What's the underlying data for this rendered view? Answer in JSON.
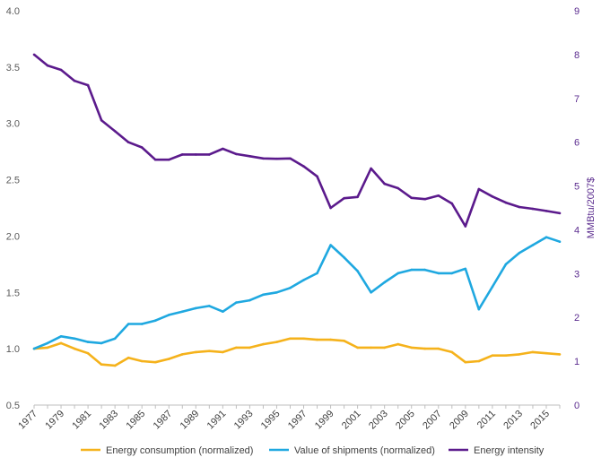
{
  "chart_data": {
    "type": "line",
    "title": "",
    "xlabel": "",
    "ylabel_left": "",
    "ylabel_right": "MMBtu/2007$",
    "ylim_left": [
      0.5,
      4.0
    ],
    "ylim_right": [
      0,
      9
    ],
    "yticks_left": [
      "0.5",
      "1.0",
      "1.5",
      "2.0",
      "2.5",
      "3.0",
      "3.5",
      "4.0"
    ],
    "yticks_right": [
      "0",
      "1",
      "2",
      "3",
      "4",
      "5",
      "6",
      "7",
      "8",
      "9"
    ],
    "x_tick_labels": [
      "1977",
      "1979",
      "1981",
      "1983",
      "1985",
      "1987",
      "1989",
      "1991",
      "1993",
      "1995",
      "1997",
      "1999",
      "2001",
      "2003",
      "2005",
      "2007",
      "2009",
      "2011",
      "2013",
      "2015"
    ],
    "x": [
      1977,
      1978,
      1979,
      1980,
      1981,
      1982,
      1983,
      1984,
      1985,
      1986,
      1987,
      1988,
      1989,
      1990,
      1991,
      1992,
      1993,
      1994,
      1995,
      1996,
      1997,
      1998,
      1999,
      2000,
      2001,
      2002,
      2003,
      2004,
      2005,
      2006,
      2007,
      2008,
      2009,
      2010,
      2011,
      2012,
      2013,
      2014,
      2015,
      2016
    ],
    "grid": false,
    "legend_position": "bottom",
    "series": [
      {
        "name": "Energy consumption (normalized)",
        "axis": "left",
        "color": "#f5b21b",
        "values": [
          1.0,
          1.01,
          1.05,
          1.0,
          0.96,
          0.86,
          0.85,
          0.92,
          0.89,
          0.88,
          0.91,
          0.95,
          0.97,
          0.98,
          0.97,
          1.01,
          1.01,
          1.04,
          1.06,
          1.09,
          1.09,
          1.08,
          1.08,
          1.07,
          1.01,
          1.01,
          1.01,
          1.04,
          1.01,
          1.0,
          1.0,
          0.97,
          0.88,
          0.89,
          0.94,
          0.94,
          0.95,
          0.97,
          0.96,
          0.95
        ]
      },
      {
        "name": "Value of shipments (normalized)",
        "axis": "left",
        "color": "#1fa8e0",
        "values": [
          1.0,
          1.05,
          1.11,
          1.09,
          1.06,
          1.05,
          1.09,
          1.22,
          1.22,
          1.25,
          1.3,
          1.33,
          1.36,
          1.38,
          1.33,
          1.41,
          1.43,
          1.48,
          1.5,
          1.54,
          1.61,
          1.67,
          1.92,
          1.81,
          1.69,
          1.5,
          1.59,
          1.67,
          1.7,
          1.7,
          1.67,
          1.67,
          1.71,
          1.35,
          1.55,
          1.75,
          1.85,
          1.92,
          1.99,
          1.95
        ]
      },
      {
        "name": "Energy intensity",
        "axis": "right",
        "color": "#5b1a8c",
        "values": [
          8.0,
          7.75,
          7.65,
          7.4,
          7.3,
          6.5,
          6.25,
          6.0,
          5.88,
          5.6,
          5.6,
          5.72,
          5.72,
          5.72,
          5.85,
          5.73,
          5.68,
          5.63,
          5.62,
          5.63,
          5.45,
          5.22,
          4.5,
          4.72,
          4.75,
          5.4,
          5.05,
          4.95,
          4.73,
          4.7,
          4.78,
          4.6,
          4.08,
          4.93,
          4.76,
          4.62,
          4.52,
          4.48,
          4.43,
          4.38
        ]
      }
    ]
  }
}
